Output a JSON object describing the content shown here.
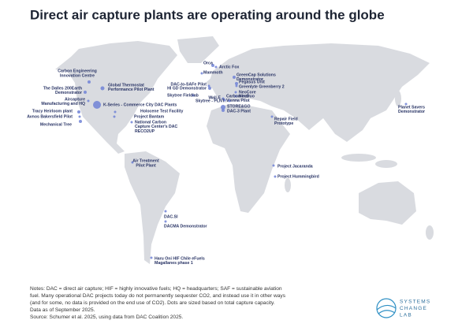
{
  "title": "Direct air capture plants are operating around the globe",
  "plants": [
    [
      "Orca"
    ],
    [
      "Arctic Fox"
    ],
    [
      "Mammoth"
    ],
    [
      "GreenCap Solutions",
      "Demonstrator"
    ],
    [
      "Pegasus Unit"
    ],
    [
      "Greenlyte Greenberry 2"
    ],
    [
      "DAC-to-SAFe Pilot"
    ],
    [
      "HI GD Demonstrator"
    ],
    [
      "NeoCore"
    ],
    [
      "NeoDuo"
    ],
    [
      "Wall-E"
    ],
    [
      "Carbominer",
      "Vienna Pilot"
    ],
    [
      "STORE&GO"
    ],
    [
      "DAC-3 Plant"
    ],
    [
      "Skytree - PLNT"
    ],
    [
      "Skytree Fieldlab"
    ],
    [
      "Repair Field",
      "Prototype"
    ],
    [
      "Planet Savers",
      "Demonstrator"
    ],
    [
      "Carbon Engineering",
      "Innovation Centre"
    ],
    [
      "Global Thermostat",
      "Performance Pilot Plant"
    ],
    [
      "The Dalles 200Earth",
      "Demonstrator"
    ],
    [
      "Aircapture",
      "Manufacturing and HQ"
    ],
    [
      "Tracy Heirloom plant"
    ],
    [
      "Avnos Bakersfield Pilot"
    ],
    [
      "Mechanical Tree"
    ],
    [
      "K-Series - Commerce City DAC Plants"
    ],
    [
      "Holocene Test Facility"
    ],
    [
      "Project Bantam"
    ],
    [
      "National Carbon",
      "Capture Center's DAC",
      "RECO2UP"
    ],
    [
      "Air Treatment",
      "Pilot Plant"
    ],
    [
      "Project Jacaranda"
    ],
    [
      "Project Hummingbird"
    ],
    [
      "DAC.SI"
    ],
    [
      "DACMA Demonstrator"
    ],
    [
      "Haru Oni HIF Chile eFuels",
      "Magallanes phase 1"
    ]
  ],
  "notes": [
    "Notes: DAC = direct air capture; HIF = highly innovative fuels; HQ = headquarters; SAF = sustainable aviation",
    "fuel. Many operational DAC projects today do not permanently sequester CO2, and instead use it in other ways",
    "(and for some, no data is provided on the end use of CO2). Dots are sized based on total capture capacity.",
    "Data as of September 2025.",
    "Source: Schumer et al. 2025, using data from DAC Coalition 2025."
  ],
  "logo": [
    "SYSTEMS",
    "CHANGE",
    "LAB"
  ]
}
